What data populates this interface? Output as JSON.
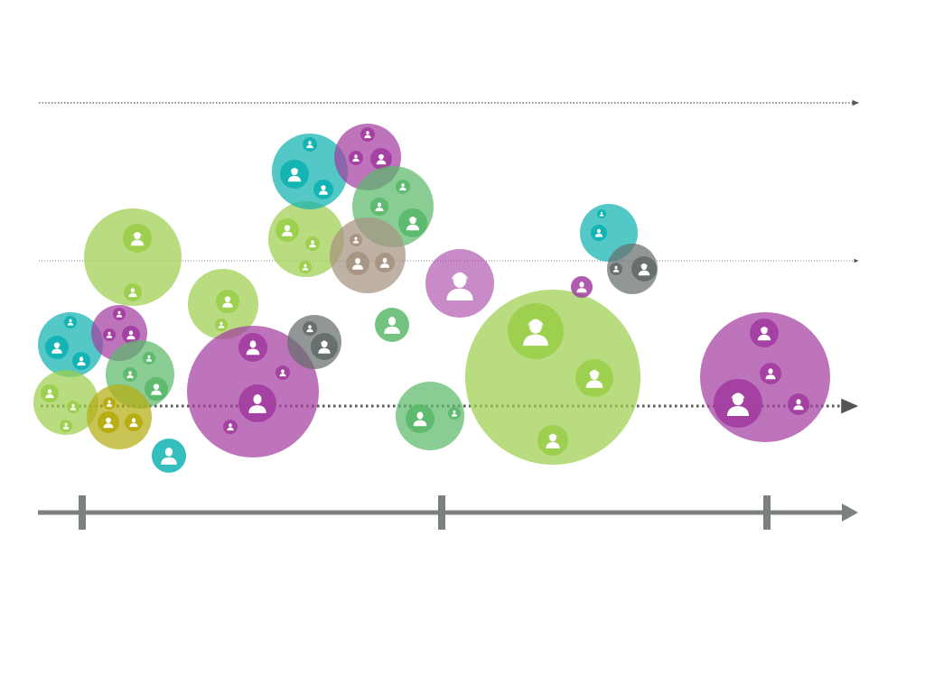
{
  "colors": {
    "lime": "#9ccf4e",
    "teal": "#10b3b2",
    "purple": "#a33ea1",
    "green": "#5cb86b",
    "taupe": "#a89382",
    "gray": "#666e6d",
    "olive": "#b5ad12",
    "axis": "#7a817f",
    "guide": "#555555",
    "person": "#ffffff"
  },
  "guides": [
    {
      "name": "guide-line-top",
      "style": "dotted-fine"
    },
    {
      "name": "guide-line-middle",
      "style": "dotted-fine"
    },
    {
      "name": "guide-line-bottom",
      "style": "dotted-bold"
    }
  ],
  "axis": {
    "ticks": 3
  },
  "bubbles": [
    {
      "name": "cluster-teal-left",
      "color": "teal",
      "members": [
        {
          "color": "teal",
          "person": "person-female"
        },
        {
          "color": "teal",
          "person": "person-male"
        },
        {
          "color": "teal",
          "person": "person-male"
        }
      ]
    },
    {
      "name": "cluster-purple-left",
      "color": "purple",
      "members": [
        {
          "color": "purple",
          "person": "person-male"
        },
        {
          "color": "purple",
          "person": "person-male"
        },
        {
          "color": "purple",
          "person": "person-male"
        }
      ]
    },
    {
      "name": "cluster-green-left",
      "color": "green",
      "members": [
        {
          "color": "green",
          "person": "person-male"
        },
        {
          "color": "green",
          "person": "person-male"
        },
        {
          "color": "green",
          "person": "person-female"
        }
      ]
    },
    {
      "name": "cluster-lime-bottom-left",
      "color": "lime",
      "members": [
        {
          "color": "lime",
          "person": "person-male"
        },
        {
          "color": "lime",
          "person": "person-male"
        },
        {
          "color": "lime",
          "person": "person-male"
        }
      ]
    },
    {
      "name": "cluster-olive",
      "color": "olive",
      "members": [
        {
          "color": "olive",
          "person": "person-male"
        },
        {
          "color": "olive",
          "person": "person-female"
        },
        {
          "color": "olive",
          "person": "person-male"
        }
      ]
    },
    {
      "name": "cluster-lime-upper-left",
      "color": "lime",
      "members": [
        {
          "color": "lime",
          "person": "person-female"
        },
        {
          "color": "lime",
          "person": "person-male"
        }
      ]
    },
    {
      "name": "cluster-lime-small",
      "color": "lime",
      "members": [
        {
          "color": "lime",
          "person": "person-female"
        },
        {
          "color": "lime",
          "person": "person-male"
        }
      ]
    },
    {
      "name": "single-teal-bottom",
      "color": "teal",
      "solid": true,
      "members": []
    },
    {
      "name": "cluster-purple-large",
      "color": "purple",
      "members": [
        {
          "color": "purple",
          "person": "person-male"
        },
        {
          "color": "purple",
          "person": "person-female"
        },
        {
          "color": "purple",
          "person": "person-male"
        },
        {
          "color": "purple",
          "person": "person-male"
        }
      ]
    },
    {
      "name": "cluster-gray-center",
      "color": "gray",
      "members": [
        {
          "color": "gray",
          "person": "person-male"
        },
        {
          "color": "gray",
          "person": "person-female"
        }
      ]
    },
    {
      "name": "cluster-lime-top",
      "color": "lime",
      "members": [
        {
          "color": "lime",
          "person": "person-female"
        },
        {
          "color": "lime",
          "person": "person-male"
        },
        {
          "color": "lime",
          "person": "person-male"
        }
      ]
    },
    {
      "name": "cluster-teal-top",
      "color": "teal",
      "members": [
        {
          "color": "teal",
          "person": "person-male"
        },
        {
          "color": "teal",
          "person": "person-female"
        },
        {
          "color": "teal",
          "person": "person-female"
        }
      ]
    },
    {
      "name": "cluster-purple-top",
      "color": "purple",
      "members": [
        {
          "color": "purple",
          "person": "person-male"
        },
        {
          "color": "purple",
          "person": "person-male"
        },
        {
          "color": "purple",
          "person": "person-female"
        }
      ]
    },
    {
      "name": "cluster-green-top",
      "color": "green",
      "members": [
        {
          "color": "green",
          "person": "person-male"
        },
        {
          "color": "green",
          "person": "person-male"
        },
        {
          "color": "green",
          "person": "person-female"
        }
      ]
    },
    {
      "name": "cluster-taupe",
      "color": "taupe",
      "members": [
        {
          "color": "taupe",
          "person": "person-male"
        },
        {
          "color": "taupe",
          "person": "person-male"
        },
        {
          "color": "taupe",
          "person": "person-male"
        }
      ]
    },
    {
      "name": "single-green-center",
      "color": "green",
      "solid": true,
      "members": []
    },
    {
      "name": "single-purple-center",
      "color": "purple",
      "solid": true,
      "members": []
    },
    {
      "name": "cluster-green-bottom",
      "color": "green",
      "members": [
        {
          "color": "green",
          "person": "person-male"
        },
        {
          "color": "green",
          "person": "person-male"
        }
      ]
    },
    {
      "name": "cluster-lime-huge",
      "color": "lime",
      "members": [
        {
          "color": "lime",
          "person": "person-female"
        },
        {
          "color": "lime",
          "person": "person-female"
        },
        {
          "color": "lime",
          "person": "person-female"
        }
      ]
    },
    {
      "name": "single-purple-small",
      "color": "purple",
      "solid": true,
      "members": []
    },
    {
      "name": "cluster-teal-right",
      "color": "teal",
      "members": [
        {
          "color": "teal",
          "person": "person-male"
        },
        {
          "color": "teal",
          "person": "person-male"
        }
      ]
    },
    {
      "name": "cluster-gray-right",
      "color": "gray",
      "members": [
        {
          "color": "gray",
          "person": "person-male"
        },
        {
          "color": "gray",
          "person": "person-female"
        }
      ]
    },
    {
      "name": "cluster-purple-right",
      "color": "purple",
      "members": [
        {
          "color": "purple",
          "person": "person-female"
        },
        {
          "color": "purple",
          "person": "person-male"
        },
        {
          "color": "purple",
          "person": "person-female"
        },
        {
          "color": "purple",
          "person": "person-male"
        }
      ]
    }
  ]
}
